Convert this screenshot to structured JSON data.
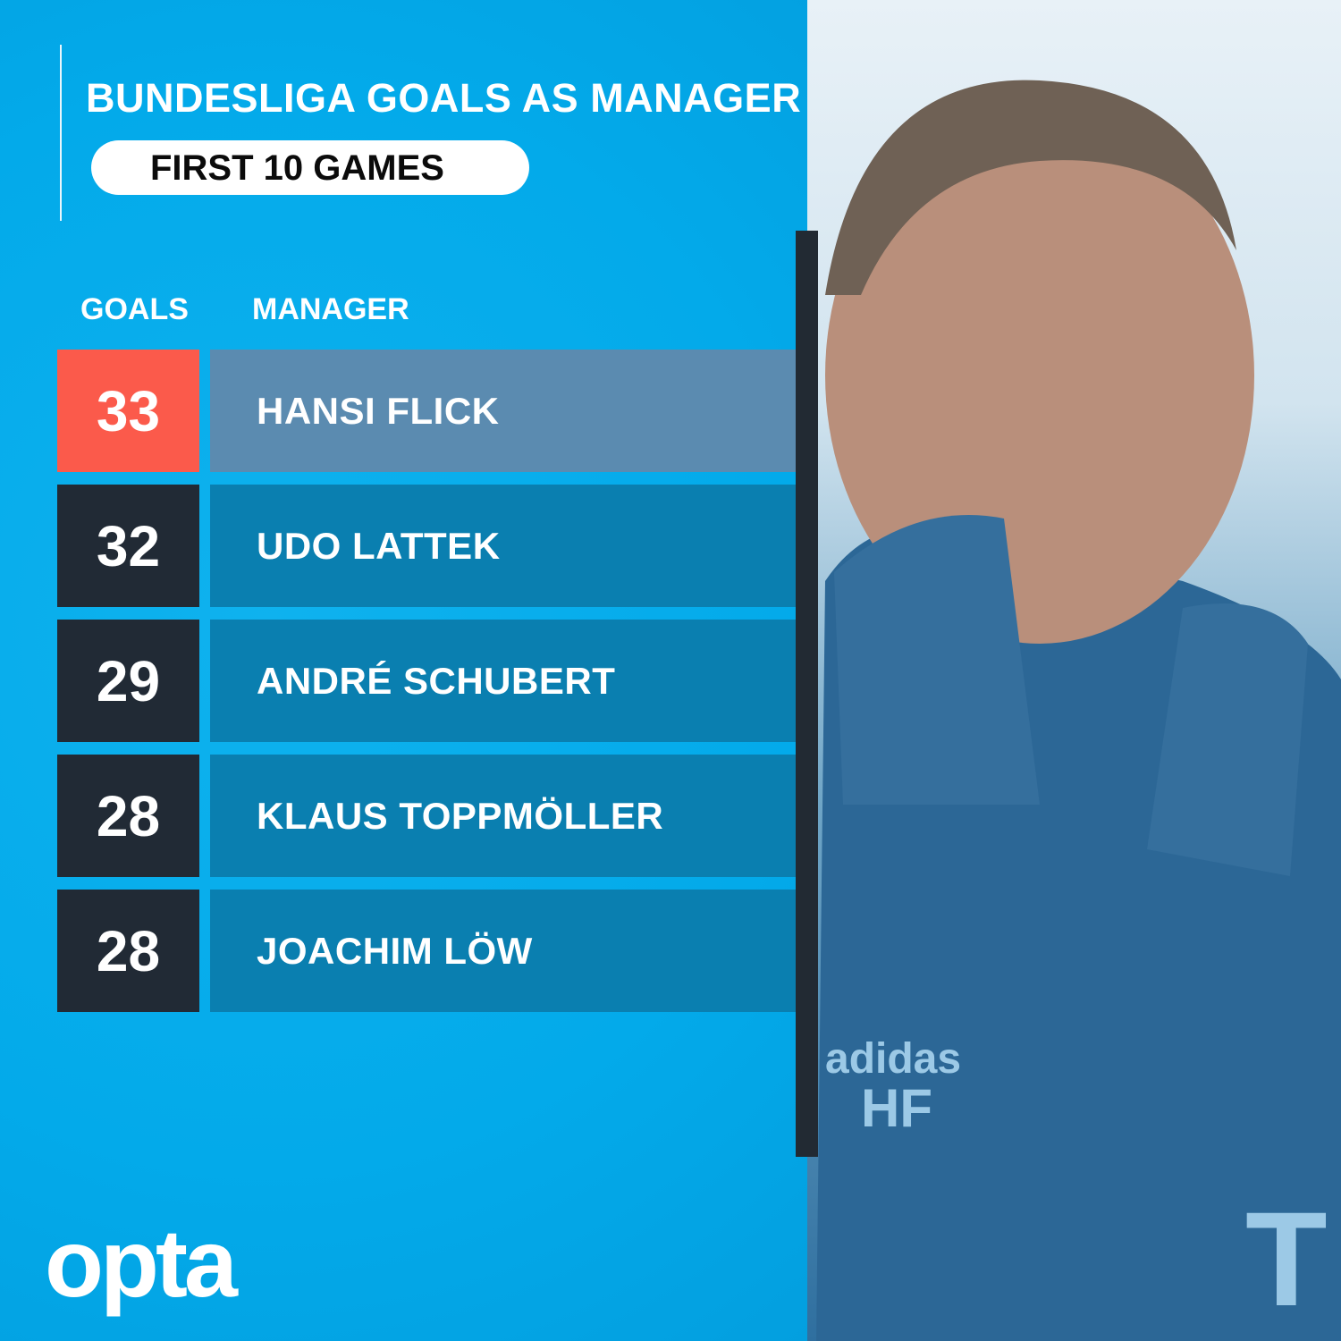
{
  "title": "BUNDESLIGA GOALS AS MANAGER",
  "subtitle": "FIRST 10 GAMES",
  "headers": {
    "goals": "GOALS",
    "manager": "MANAGER"
  },
  "chart_data": {
    "type": "table",
    "title": "BUNDESLIGA GOALS AS MANAGER",
    "subtitle": "FIRST 10 GAMES",
    "columns": [
      "GOALS",
      "MANAGER"
    ],
    "rows": [
      {
        "goals": "33",
        "manager": "HANSI FLICK",
        "highlight": true
      },
      {
        "goals": "32",
        "manager": "UDO LATTEK",
        "highlight": false
      },
      {
        "goals": "29",
        "manager": "ANDRÉ SCHUBERT",
        "highlight": false
      },
      {
        "goals": "28",
        "manager": "KLAUS TOPPMÖLLER",
        "highlight": false
      },
      {
        "goals": "28",
        "manager": "JOACHIM LÖW",
        "highlight": false
      }
    ]
  },
  "colors": {
    "background": "#05aeec",
    "highlight_goal": "#fb5a4b",
    "highlight_name": "#5b8bb0",
    "goal_box": "#212a35",
    "name_box": "#0a7fb0"
  },
  "logo": "opta",
  "photo": "manager-portrait"
}
